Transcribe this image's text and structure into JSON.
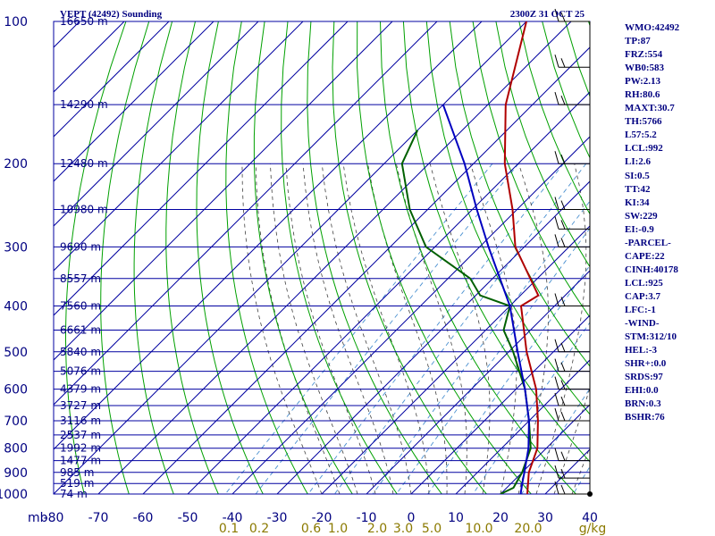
{
  "chart_data": {
    "type": "skew-t log-p sounding",
    "title_left": "VEPT (42492) Sounding",
    "title_right": "2300Z 31 OCT 25",
    "y_axis": {
      "unit": "mb",
      "label": "mb",
      "range": [
        1000,
        100
      ],
      "ticks": [
        "100",
        "200",
        "300",
        "400",
        "500",
        "600",
        "700",
        "800",
        "900",
        "1000"
      ]
    },
    "x_axis": {
      "unit": "°C",
      "range": [
        -80,
        40
      ],
      "ticks": [
        "-80",
        "-70",
        "-60",
        "-50",
        "-40",
        "-30",
        "-20",
        "-10",
        "0",
        "10",
        "20",
        "30",
        "40"
      ]
    },
    "mixing_ratio_labels": [
      "0.1",
      "0.2",
      "0.6",
      "1.0",
      "2.0",
      "3.0",
      "5.0",
      "10.0",
      "20.0",
      "g/kg"
    ],
    "height_labels": [
      {
        "p": 100,
        "label": "16650 m"
      },
      {
        "p": 150,
        "label": "14290 m"
      },
      {
        "p": 200,
        "label": "12480 m"
      },
      {
        "p": 250,
        "label": "10980 m"
      },
      {
        "p": 300,
        "label": "9690 m"
      },
      {
        "p": 350,
        "label": "8557 m"
      },
      {
        "p": 400,
        "label": "7560 m"
      },
      {
        "p": 450,
        "label": "6661 m"
      },
      {
        "p": 500,
        "label": "5840 m"
      },
      {
        "p": 550,
        "label": "5076 m"
      },
      {
        "p": 600,
        "label": "4379 m"
      },
      {
        "p": 650,
        "label": "3727 m"
      },
      {
        "p": 700,
        "label": "3116 m"
      },
      {
        "p": 750,
        "label": "2537 m"
      },
      {
        "p": 800,
        "label": "1992 m"
      },
      {
        "p": 850,
        "label": "1477 m"
      },
      {
        "p": 900,
        "label": "985 m"
      },
      {
        "p": 950,
        "label": "519 m"
      },
      {
        "p": 1000,
        "label": "74 m"
      }
    ],
    "series": [
      {
        "name": "Temperature",
        "color": "#b00000",
        "points": [
          {
            "p": 100,
            "t": -80
          },
          {
            "p": 150,
            "t": -66
          },
          {
            "p": 200,
            "t": -53
          },
          {
            "p": 250,
            "t": -41
          },
          {
            "p": 300,
            "t": -32
          },
          {
            "p": 380,
            "t": -16
          },
          {
            "p": 400,
            "t": -17.5
          },
          {
            "p": 500,
            "t": -6
          },
          {
            "p": 600,
            "t": 4.5
          },
          {
            "p": 700,
            "t": 12
          },
          {
            "p": 800,
            "t": 18
          },
          {
            "p": 900,
            "t": 21.5
          },
          {
            "p": 1000,
            "t": 26
          }
        ]
      },
      {
        "name": "Dewpoint",
        "color": "#006000",
        "points": [
          {
            "p": 170,
            "t": -80
          },
          {
            "p": 200,
            "t": -76
          },
          {
            "p": 250,
            "t": -64
          },
          {
            "p": 300,
            "t": -52
          },
          {
            "p": 350,
            "t": -35
          },
          {
            "p": 380,
            "t": -29
          },
          {
            "p": 400,
            "t": -20
          },
          {
            "p": 450,
            "t": -16
          },
          {
            "p": 500,
            "t": -9
          },
          {
            "p": 600,
            "t": 2
          },
          {
            "p": 700,
            "t": 10
          },
          {
            "p": 800,
            "t": 16.5
          },
          {
            "p": 900,
            "t": 20
          },
          {
            "p": 970,
            "t": 21.5
          },
          {
            "p": 1000,
            "t": 20
          }
        ]
      },
      {
        "name": "Parcel path",
        "color": "#0000c0",
        "points": [
          {
            "p": 150,
            "t": -80
          },
          {
            "p": 200,
            "t": -62
          },
          {
            "p": 250,
            "t": -49
          },
          {
            "p": 300,
            "t": -38
          },
          {
            "p": 400,
            "t": -20
          },
          {
            "p": 500,
            "t": -8
          },
          {
            "p": 600,
            "t": 2
          },
          {
            "p": 700,
            "t": 10
          },
          {
            "p": 800,
            "t": 16
          },
          {
            "p": 900,
            "t": 20.5
          },
          {
            "p": 950,
            "t": 22.5
          },
          {
            "p": 1000,
            "t": 24.5
          }
        ]
      }
    ],
    "wind_barbs": [
      {
        "p": 100
      },
      {
        "p": 125
      },
      {
        "p": 150
      },
      {
        "p": 200
      },
      {
        "p": 250
      },
      {
        "p": 275
      },
      {
        "p": 300
      },
      {
        "p": 400
      },
      {
        "p": 500
      },
      {
        "p": 550
      },
      {
        "p": 600
      },
      {
        "p": 650
      },
      {
        "p": 700
      },
      {
        "p": 850
      },
      {
        "p": 925
      },
      {
        "p": 1000
      }
    ]
  },
  "stats": [
    "WMO:42492",
    "TP:87",
    "FRZ:554",
    "WB0:583",
    "PW:2.13",
    "RH:80.6",
    "MAXT:30.7",
    "TH:5766",
    "L57:5.2",
    "LCL:992",
    "LI:2.6",
    "SI:0.5",
    "TT:42",
    "KI:34",
    "SW:229",
    "EI:-0.9",
    "-PARCEL-",
    "CAPE:22",
    "CINH:40178",
    "LCL:925",
    "CAP:3.7",
    "LFC:-1",
    "-WIND-",
    "STM:312/10",
    "HEL:-3",
    "SHR+:0.0",
    "SRDS:97",
    "EHI:0.0",
    "BRN:0.3",
    "BSHR:76"
  ],
  "colors": {
    "grid": "#0000a0",
    "dry_adiabat": "#00a000",
    "moist_adiabat": "#404040",
    "mixing_ratio": "#4a90d0",
    "text": "#000080",
    "mixing_label": "#8b7a00"
  }
}
